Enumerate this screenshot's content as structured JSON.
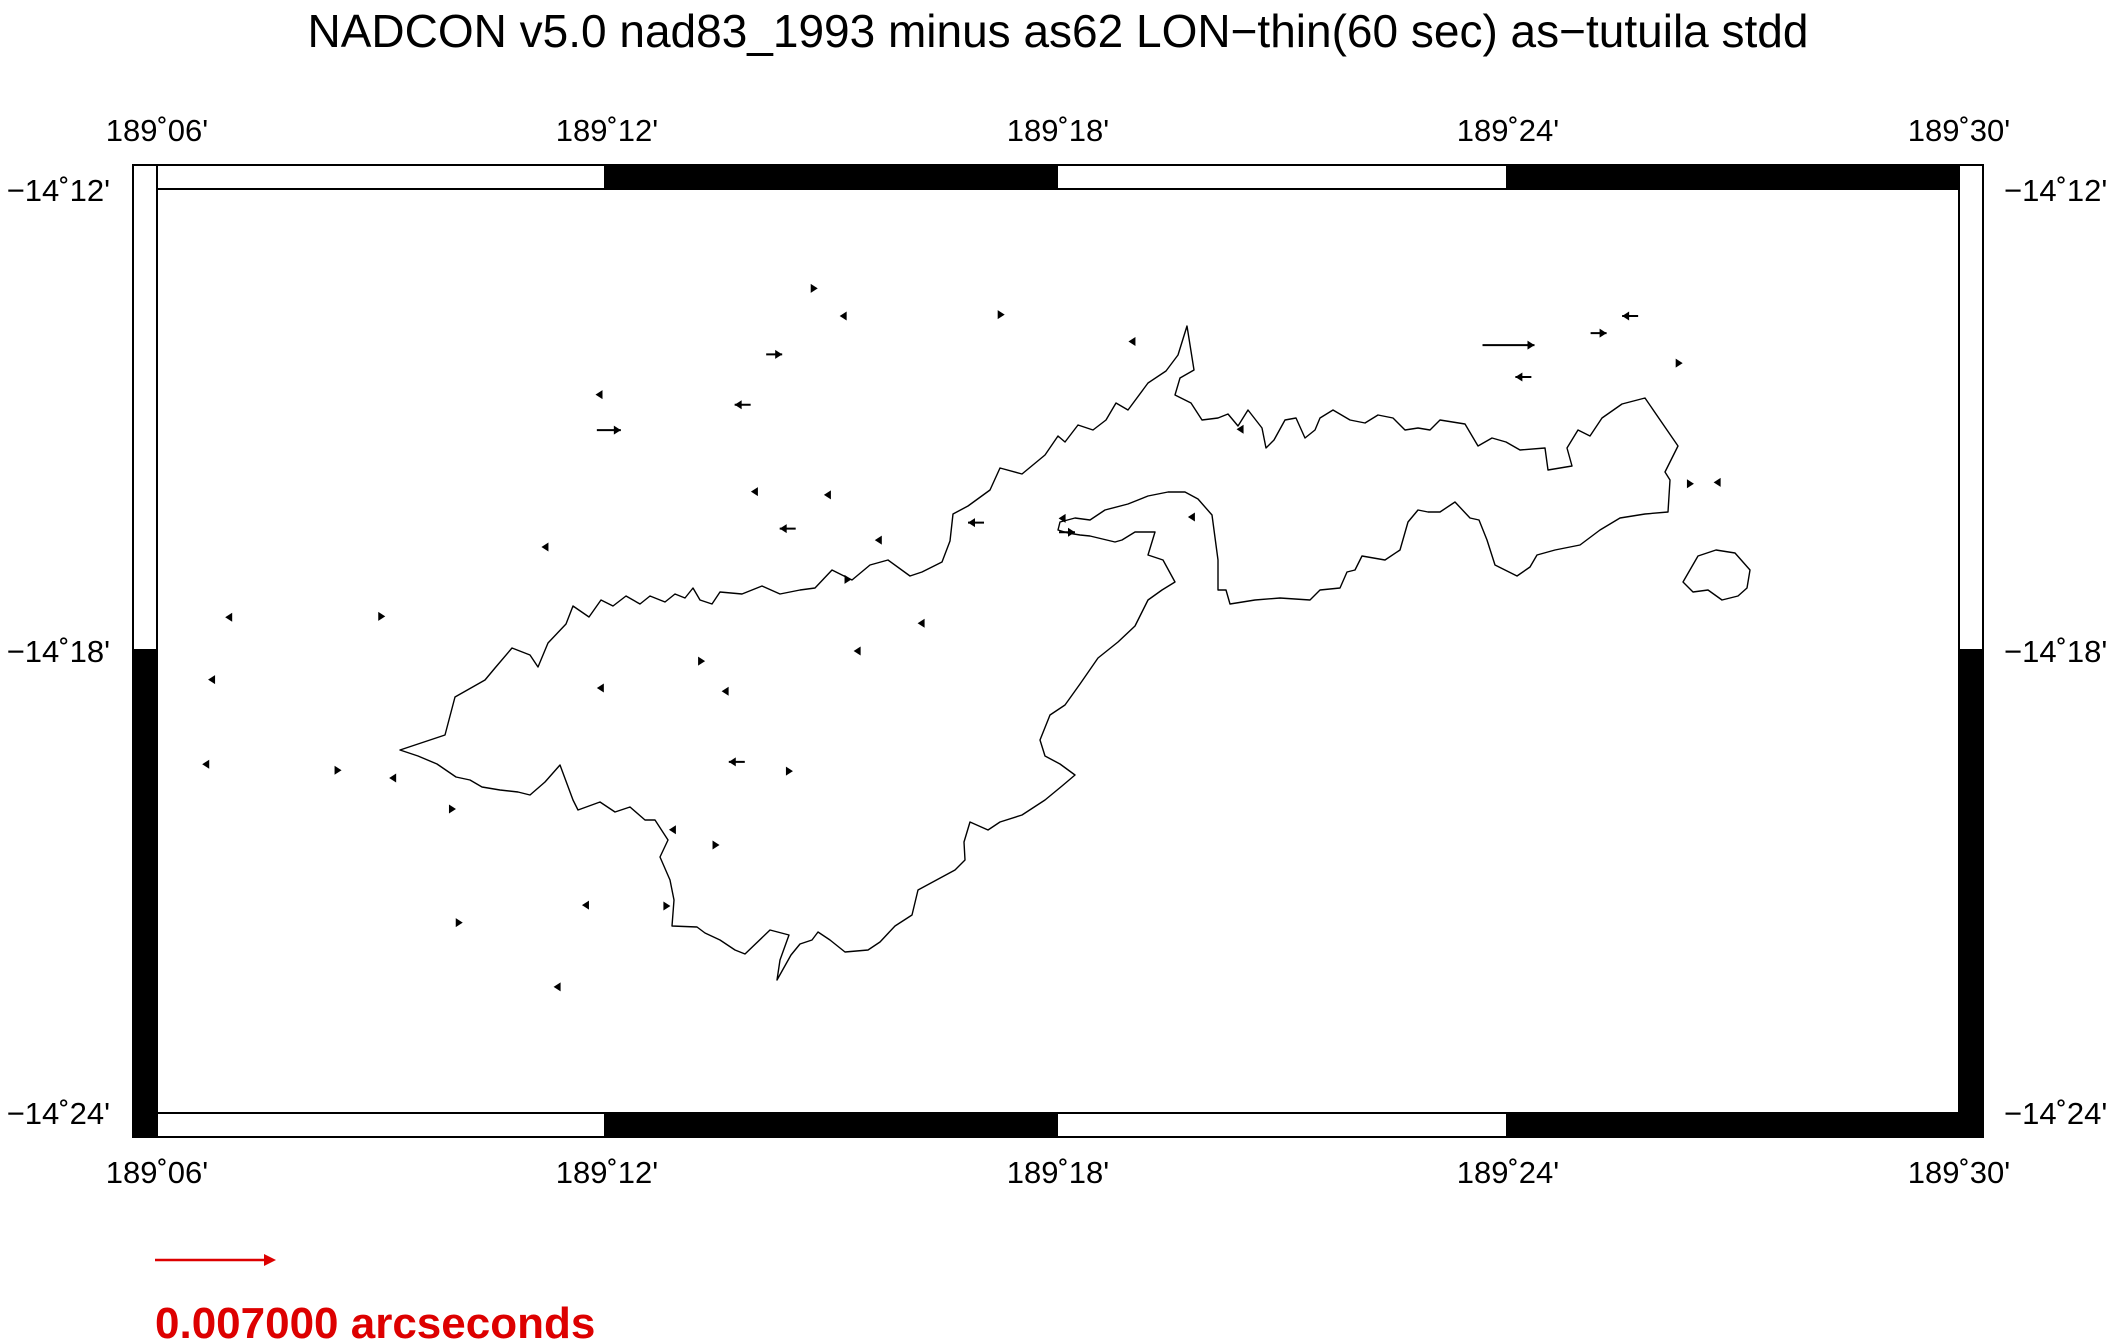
{
  "title": "NADCON v5.0 nad83_1993 minus as62 LON−thin(60 sec) as−tutuila stdd",
  "lon_ticks": [
    "189˚06'",
    "189˚12'",
    "189˚18'",
    "189˚24'",
    "189˚30'"
  ],
  "lat_ticks": [
    "−14˚12'",
    "−14˚18'",
    "−14˚24'"
  ],
  "legend": {
    "label": "0.007000 arcseconds",
    "color": "#dd0000"
  },
  "colors": {
    "frame": "#000000",
    "coastline": "#000000",
    "vectors": "#000000"
  },
  "vectors": [
    {
      "lon": 189.2003,
      "lat": -14.2522,
      "dir": "right",
      "mag": "medium"
    },
    {
      "lon": 189.23,
      "lat": -14.2467,
      "dir": "left",
      "mag": "small"
    },
    {
      "lon": 189.198,
      "lat": -14.2445,
      "dir": "left",
      "mag": "tiny"
    },
    {
      "lon": 189.237,
      "lat": -14.2358,
      "dir": "right",
      "mag": "small"
    },
    {
      "lon": 189.246,
      "lat": -14.2215,
      "dir": "right",
      "mag": "tiny"
    },
    {
      "lon": 189.2522,
      "lat": -14.2275,
      "dir": "left",
      "mag": "tiny"
    },
    {
      "lon": 189.2875,
      "lat": -14.2272,
      "dir": "right",
      "mag": "tiny"
    },
    {
      "lon": 189.3163,
      "lat": -14.233,
      "dir": "left",
      "mag": "tiny"
    },
    {
      "lon": 189.4,
      "lat": -14.2338,
      "dir": "right",
      "mag": "large"
    },
    {
      "lon": 189.4033,
      "lat": -14.2407,
      "dir": "left",
      "mag": "small"
    },
    {
      "lon": 189.42,
      "lat": -14.2312,
      "dir": "right",
      "mag": "small"
    },
    {
      "lon": 189.427,
      "lat": -14.2275,
      "dir": "left",
      "mag": "small"
    },
    {
      "lon": 189.438,
      "lat": -14.2377,
      "dir": "right",
      "mag": "tiny"
    },
    {
      "lon": 189.3403,
      "lat": -14.252,
      "dir": "left",
      "mag": "tiny"
    },
    {
      "lon": 189.2325,
      "lat": -14.2655,
      "dir": "left",
      "mag": "tiny"
    },
    {
      "lon": 189.24,
      "lat": -14.2735,
      "dir": "left",
      "mag": "small"
    },
    {
      "lon": 189.2487,
      "lat": -14.2662,
      "dir": "left",
      "mag": "tiny"
    },
    {
      "lon": 189.2818,
      "lat": -14.2722,
      "dir": "left",
      "mag": "small"
    },
    {
      "lon": 189.3008,
      "lat": -14.2713,
      "dir": "left",
      "mag": "tiny"
    },
    {
      "lon": 189.302,
      "lat": -14.2743,
      "dir": "right",
      "mag": "small"
    },
    {
      "lon": 189.3295,
      "lat": -14.271,
      "dir": "left",
      "mag": "tiny"
    },
    {
      "lon": 189.4405,
      "lat": -14.2638,
      "dir": "right",
      "mag": "tiny"
    },
    {
      "lon": 189.4462,
      "lat": -14.2635,
      "dir": "left",
      "mag": "tiny"
    },
    {
      "lon": 189.186,
      "lat": -14.2775,
      "dir": "left",
      "mag": "tiny"
    },
    {
      "lon": 189.2535,
      "lat": -14.2845,
      "dir": "right",
      "mag": "tiny"
    },
    {
      "lon": 189.26,
      "lat": -14.276,
      "dir": "left",
      "mag": "tiny"
    },
    {
      "lon": 189.1158,
      "lat": -14.2927,
      "dir": "left",
      "mag": "tiny"
    },
    {
      "lon": 189.15,
      "lat": -14.2925,
      "dir": "right",
      "mag": "tiny"
    },
    {
      "lon": 189.112,
      "lat": -14.3062,
      "dir": "left",
      "mag": "tiny"
    },
    {
      "lon": 189.1983,
      "lat": -14.308,
      "dir": "left",
      "mag": "tiny"
    },
    {
      "lon": 189.221,
      "lat": -14.3022,
      "dir": "right",
      "mag": "tiny"
    },
    {
      "lon": 189.226,
      "lat": -14.3087,
      "dir": "left",
      "mag": "tiny"
    },
    {
      "lon": 189.2553,
      "lat": -14.3,
      "dir": "left",
      "mag": "tiny"
    },
    {
      "lon": 189.2695,
      "lat": -14.294,
      "dir": "left",
      "mag": "tiny"
    },
    {
      "lon": 189.1107,
      "lat": -14.3245,
      "dir": "left",
      "mag": "tiny"
    },
    {
      "lon": 189.1403,
      "lat": -14.3258,
      "dir": "right",
      "mag": "tiny"
    },
    {
      "lon": 189.1522,
      "lat": -14.3275,
      "dir": "left",
      "mag": "tiny"
    },
    {
      "lon": 189.2287,
      "lat": -14.324,
      "dir": "left",
      "mag": "small"
    },
    {
      "lon": 189.2405,
      "lat": -14.326,
      "dir": "right",
      "mag": "tiny"
    },
    {
      "lon": 189.1657,
      "lat": -14.3342,
      "dir": "right",
      "mag": "tiny"
    },
    {
      "lon": 189.2143,
      "lat": -14.3387,
      "dir": "left",
      "mag": "tiny"
    },
    {
      "lon": 189.2242,
      "lat": -14.342,
      "dir": "right",
      "mag": "tiny"
    },
    {
      "lon": 189.1672,
      "lat": -14.3588,
      "dir": "right",
      "mag": "tiny"
    },
    {
      "lon": 189.195,
      "lat": -14.355,
      "dir": "left",
      "mag": "tiny"
    },
    {
      "lon": 189.2133,
      "lat": -14.3552,
      "dir": "right",
      "mag": "tiny"
    },
    {
      "lon": 189.1887,
      "lat": -14.3727,
      "dir": "left",
      "mag": "tiny"
    }
  ]
}
